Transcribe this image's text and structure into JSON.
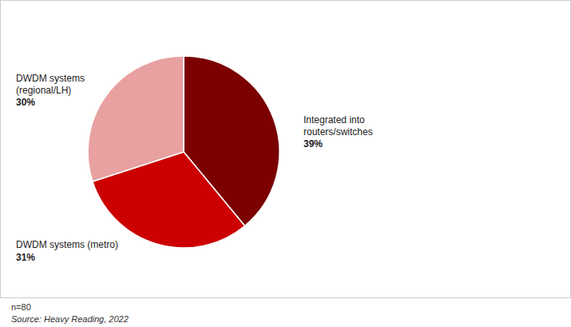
{
  "chart_data": {
    "type": "pie",
    "categories": [
      "Integrated into\nrouters/switches",
      "DWDM systems (metro)",
      "DWDM systems\n(regional/LH)"
    ],
    "values": [
      39,
      31,
      30
    ],
    "value_labels": [
      "39%",
      "31%",
      "30%"
    ],
    "data_labels": true,
    "colors": [
      "#7B0000",
      "#CC0000",
      "#E8A0A0"
    ],
    "annotations": [
      "n=80",
      "Source: Heavy Reading, 2022"
    ]
  }
}
